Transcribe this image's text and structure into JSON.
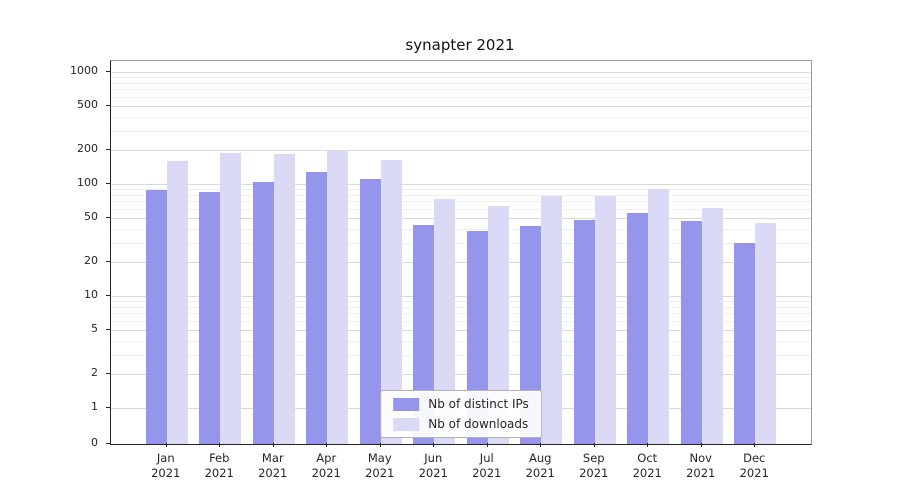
{
  "title": "synapter 2021",
  "chart_data": {
    "type": "bar",
    "scale": "symlog",
    "title": "synapter 2021",
    "xlabel": "",
    "ylabel": "",
    "year_label": "2021",
    "categories": [
      "Jan",
      "Feb",
      "Mar",
      "Apr",
      "May",
      "Jun",
      "Jul",
      "Aug",
      "Sep",
      "Oct",
      "Nov",
      "Dec"
    ],
    "series": [
      {
        "name": "Nb of distinct IPs",
        "color": "#9595ec",
        "values": [
          88,
          84,
          105,
          128,
          110,
          43,
          38,
          42,
          48,
          55,
          47,
          30
        ]
      },
      {
        "name": "Nb of downloads",
        "color": "#dadaf6",
        "values": [
          160,
          190,
          185,
          200,
          165,
          74,
          63,
          78,
          78,
          90,
          61,
          45
        ]
      }
    ],
    "yticks": [
      0,
      1,
      2,
      5,
      10,
      20,
      50,
      100,
      200,
      500,
      1000
    ],
    "ylim": [
      0,
      1300
    ],
    "grid": true,
    "legend_position": "lower center inside"
  }
}
